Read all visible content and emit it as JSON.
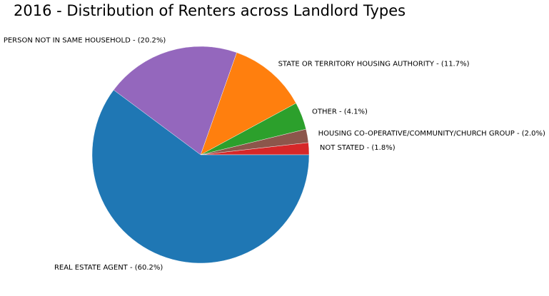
{
  "chart_data": {
    "type": "pie",
    "title": "2016 - Distribution of Renters across Landlord Types",
    "start_angle_deg": 0,
    "direction": "counterclockwise",
    "slices": [
      {
        "label": "NOT STATED - (1.8%)",
        "value": 1.8,
        "color": "#d62728"
      },
      {
        "label": "HOUSING CO-OPERATIVE/COMMUNITY/CHURCH GROUP - (2.0%)",
        "value": 2.0,
        "color": "#8c564b"
      },
      {
        "label": "OTHER - (4.1%)",
        "value": 4.1,
        "color": "#2ca02c"
      },
      {
        "label": "STATE OR TERRITORY HOUSING AUTHORITY - (11.7%)",
        "value": 11.7,
        "color": "#ff7f0e"
      },
      {
        "label": "PERSON NOT IN SAME HOUSEHOLD - (20.2%)",
        "value": 20.2,
        "color": "#9467bd"
      },
      {
        "label": "REAL ESTATE AGENT - (60.2%)",
        "value": 60.2,
        "color": "#1f77b4"
      }
    ]
  }
}
